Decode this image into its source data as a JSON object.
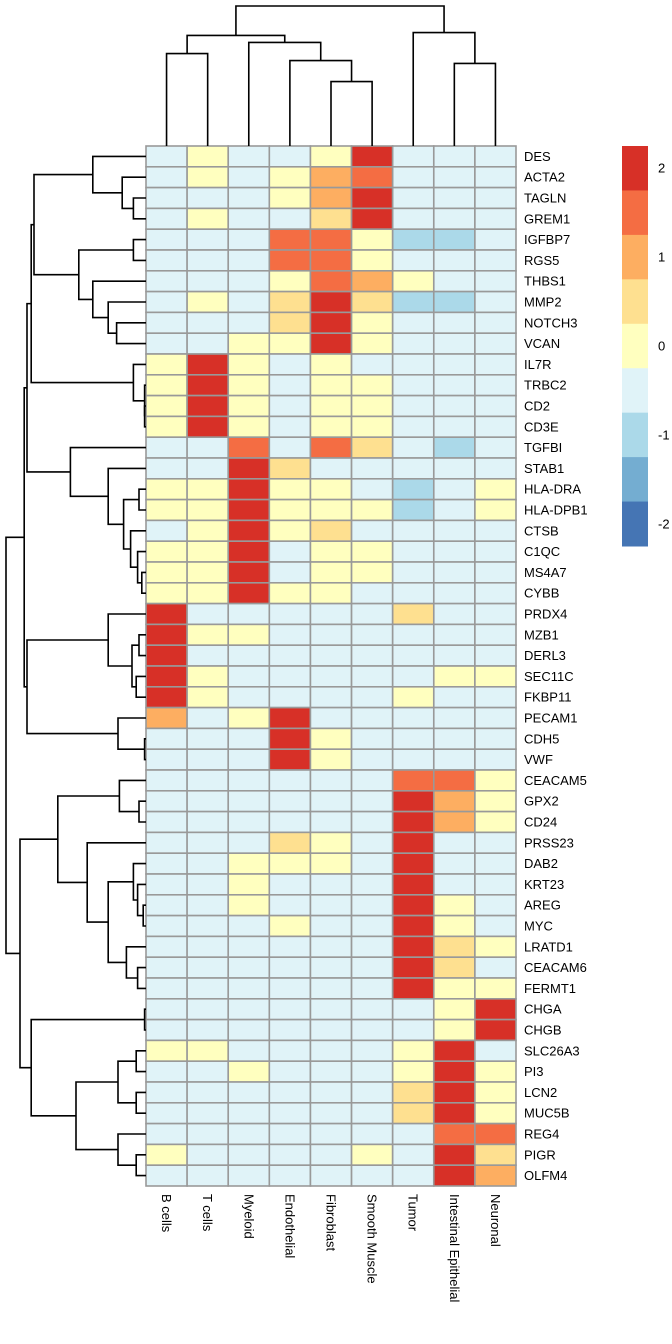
{
  "chart_data": {
    "type": "heatmap",
    "title": "",
    "xlabel": "",
    "ylabel": "",
    "columns": [
      "B cells",
      "T cells",
      "Myeloid",
      "Endothelial",
      "Fibroblast",
      "Smooth Muscle",
      "Tumor",
      "Intestinal Epithelial",
      "Neuronal"
    ],
    "rows": [
      "DES",
      "ACTA2",
      "TAGLN",
      "GREM1",
      "IGFBP7",
      "RGS5",
      "THBS1",
      "MMP2",
      "NOTCH3",
      "VCAN",
      "IL7R",
      "TRBC2",
      "CD2",
      "CD3E",
      "TGFBI",
      "STAB1",
      "HLA-DRA",
      "HLA-DPB1",
      "CTSB",
      "C1QC",
      "MS4A7",
      "CYBB",
      "PRDX4",
      "MZB1",
      "DERL3",
      "SEC11C",
      "FKBP11",
      "PECAM1",
      "CDH5",
      "VWF",
      "CEACAM5",
      "GPX2",
      "CD24",
      "PRSS23",
      "DAB2",
      "KRT23",
      "AREG",
      "MYC",
      "LRATD1",
      "CEACAM6",
      "FERMT1",
      "CHGA",
      "CHGB",
      "SLC26A3",
      "PI3",
      "LCN2",
      "MUC5B",
      "REG4",
      "PIGR",
      "OLFM4"
    ],
    "values": [
      [
        -0.25,
        0.25,
        -0.25,
        -0.25,
        0.25,
        2.5,
        -0.25,
        -0.25,
        -0.25
      ],
      [
        -0.25,
        0.25,
        -0.25,
        0.25,
        1.25,
        1.75,
        -0.25,
        -0.25,
        -0.25
      ],
      [
        -0.25,
        -0.25,
        -0.25,
        0.25,
        1.25,
        2.5,
        -0.25,
        -0.25,
        -0.25
      ],
      [
        -0.25,
        0.25,
        -0.25,
        -0.25,
        0.75,
        2.5,
        -0.25,
        -0.25,
        -0.25
      ],
      [
        -0.25,
        -0.25,
        -0.25,
        1.75,
        1.75,
        0.25,
        -0.75,
        -0.75,
        -0.25
      ],
      [
        -0.25,
        -0.25,
        -0.25,
        1.75,
        1.75,
        0.25,
        -0.25,
        -0.25,
        -0.25
      ],
      [
        -0.25,
        -0.25,
        -0.25,
        0.25,
        1.75,
        1.25,
        0.25,
        -0.25,
        -0.25
      ],
      [
        -0.25,
        0.25,
        -0.25,
        0.75,
        2.5,
        0.75,
        -0.75,
        -0.75,
        -0.25
      ],
      [
        -0.25,
        -0.25,
        -0.25,
        0.75,
        2.5,
        0.25,
        -0.25,
        -0.25,
        -0.25
      ],
      [
        -0.25,
        -0.25,
        0.25,
        0.25,
        2.5,
        0.25,
        -0.25,
        -0.25,
        -0.25
      ],
      [
        0.25,
        2.5,
        0.25,
        -0.25,
        0.25,
        -0.25,
        -0.25,
        -0.25,
        -0.25
      ],
      [
        0.25,
        2.5,
        0.25,
        -0.25,
        0.25,
        0.25,
        -0.25,
        -0.25,
        -0.25
      ],
      [
        0.25,
        2.5,
        0.25,
        -0.25,
        0.25,
        0.25,
        -0.25,
        -0.25,
        -0.25
      ],
      [
        0.25,
        2.5,
        0.25,
        -0.25,
        0.25,
        0.25,
        -0.25,
        -0.25,
        -0.25
      ],
      [
        -0.25,
        -0.25,
        1.75,
        -0.25,
        1.75,
        0.75,
        -0.25,
        -0.75,
        -0.25
      ],
      [
        -0.25,
        -0.25,
        2.5,
        0.75,
        -0.25,
        -0.25,
        -0.25,
        -0.25,
        -0.25
      ],
      [
        0.25,
        0.25,
        2.5,
        0.25,
        0.25,
        -0.25,
        -0.75,
        -0.25,
        0.25
      ],
      [
        0.25,
        0.25,
        2.5,
        0.25,
        0.25,
        0.25,
        -0.75,
        -0.25,
        0.25
      ],
      [
        -0.25,
        0.25,
        2.5,
        0.25,
        0.75,
        -0.25,
        -0.25,
        -0.25,
        -0.25
      ],
      [
        0.25,
        0.25,
        2.5,
        -0.25,
        0.25,
        0.25,
        -0.25,
        -0.25,
        -0.25
      ],
      [
        0.25,
        0.25,
        2.5,
        -0.25,
        0.25,
        0.25,
        -0.25,
        -0.25,
        -0.25
      ],
      [
        0.25,
        0.25,
        2.5,
        0.25,
        0.25,
        -0.25,
        -0.25,
        -0.25,
        -0.25
      ],
      [
        2.5,
        -0.25,
        -0.25,
        -0.25,
        -0.25,
        -0.25,
        0.75,
        -0.25,
        -0.25
      ],
      [
        2.5,
        0.25,
        0.25,
        -0.25,
        -0.25,
        -0.25,
        -0.25,
        -0.25,
        -0.25
      ],
      [
        2.5,
        -0.25,
        -0.25,
        -0.25,
        -0.25,
        -0.25,
        -0.25,
        -0.25,
        -0.25
      ],
      [
        2.5,
        0.25,
        -0.25,
        -0.25,
        -0.25,
        -0.25,
        -0.25,
        0.25,
        0.25
      ],
      [
        2.5,
        0.25,
        -0.25,
        -0.25,
        -0.25,
        -0.25,
        0.25,
        -0.25,
        -0.25
      ],
      [
        1.25,
        -0.25,
        0.25,
        2.5,
        -0.25,
        -0.25,
        -0.25,
        -0.25,
        -0.25
      ],
      [
        -0.25,
        -0.25,
        -0.25,
        2.5,
        0.25,
        -0.25,
        -0.25,
        -0.25,
        -0.25
      ],
      [
        -0.25,
        -0.25,
        -0.25,
        2.5,
        0.25,
        -0.25,
        -0.25,
        -0.25,
        -0.25
      ],
      [
        -0.25,
        -0.25,
        -0.25,
        -0.25,
        -0.25,
        -0.25,
        1.75,
        1.75,
        0.25
      ],
      [
        -0.25,
        -0.25,
        -0.25,
        -0.25,
        -0.25,
        -0.25,
        2.5,
        1.25,
        0.25
      ],
      [
        -0.25,
        -0.25,
        -0.25,
        -0.25,
        -0.25,
        -0.25,
        2.5,
        1.25,
        0.25
      ],
      [
        -0.25,
        -0.25,
        -0.25,
        0.75,
        0.25,
        -0.25,
        2.5,
        -0.25,
        -0.25
      ],
      [
        -0.25,
        -0.25,
        0.25,
        0.25,
        0.25,
        -0.25,
        2.5,
        -0.25,
        -0.25
      ],
      [
        -0.25,
        -0.25,
        0.25,
        -0.25,
        -0.25,
        -0.25,
        2.5,
        -0.25,
        -0.25
      ],
      [
        -0.25,
        -0.25,
        0.25,
        -0.25,
        -0.25,
        -0.25,
        2.5,
        0.25,
        -0.25
      ],
      [
        -0.25,
        -0.25,
        -0.25,
        0.25,
        -0.25,
        -0.25,
        2.5,
        0.25,
        -0.25
      ],
      [
        -0.25,
        -0.25,
        -0.25,
        -0.25,
        -0.25,
        -0.25,
        2.5,
        0.75,
        0.25
      ],
      [
        -0.25,
        -0.25,
        -0.25,
        -0.25,
        -0.25,
        -0.25,
        2.5,
        0.75,
        -0.25
      ],
      [
        -0.25,
        -0.25,
        -0.25,
        -0.25,
        -0.25,
        -0.25,
        2.5,
        0.25,
        0.25
      ],
      [
        -0.25,
        -0.25,
        -0.25,
        -0.25,
        -0.25,
        -0.25,
        -0.25,
        0.25,
        2.5
      ],
      [
        -0.25,
        -0.25,
        -0.25,
        -0.25,
        -0.25,
        -0.25,
        -0.25,
        0.25,
        2.5
      ],
      [
        0.25,
        0.25,
        -0.25,
        -0.25,
        -0.25,
        -0.25,
        0.25,
        2.5,
        -0.25
      ],
      [
        -0.25,
        -0.25,
        0.25,
        -0.25,
        -0.25,
        -0.25,
        0.25,
        2.5,
        0.25
      ],
      [
        -0.25,
        -0.25,
        -0.25,
        -0.25,
        -0.25,
        -0.25,
        0.75,
        2.5,
        0.25
      ],
      [
        -0.25,
        -0.25,
        -0.25,
        -0.25,
        -0.25,
        -0.25,
        0.75,
        2.5,
        0.25
      ],
      [
        -0.25,
        -0.25,
        -0.25,
        -0.25,
        -0.25,
        -0.25,
        -0.25,
        1.75,
        1.75
      ],
      [
        0.25,
        -0.25,
        -0.25,
        -0.25,
        -0.25,
        0.25,
        -0.25,
        2.5,
        0.75
      ],
      [
        -0.25,
        -0.25,
        -0.25,
        -0.25,
        -0.25,
        -0.25,
        -0.25,
        2.5,
        1.25
      ]
    ],
    "color_bins": [
      {
        "min": 2.0,
        "max": 2.5,
        "color": "#D73027"
      },
      {
        "min": 1.5,
        "max": 2.0,
        "color": "#F46D43"
      },
      {
        "min": 1.0,
        "max": 1.5,
        "color": "#FDAE61"
      },
      {
        "min": 0.5,
        "max": 1.0,
        "color": "#FEE090"
      },
      {
        "min": 0.0,
        "max": 0.5,
        "color": "#FFFFBF"
      },
      {
        "min": -0.5,
        "max": 0.0,
        "color": "#E0F3F8"
      },
      {
        "min": -1.0,
        "max": -0.5,
        "color": "#ABD9E9"
      },
      {
        "min": -1.5,
        "max": -1.0,
        "color": "#74ADD1"
      },
      {
        "min": -2.0,
        "max": -1.5,
        "color": "#4575B4"
      }
    ],
    "legend": {
      "position": "right",
      "ticks": [
        2,
        1,
        0,
        -1,
        -2
      ],
      "range": [
        -2.25,
        2.25
      ]
    },
    "grid_border_color": "#999999",
    "row_dendrogram": [
      [
        [
          [
            [
              1,
              [
                2,
                3,
                0.09
              ],
              0.17
            ],
            0,
            0.38
          ],
          [
            [
              4,
              5,
              0.09
            ],
            [
              6,
              [
                7,
                [
                  8,
                  9,
                  0.21
                ],
                0.27
              ],
              0.38
            ],
            0.48
          ],
          0.8
        ],
        [
          10,
          [
            11,
            [
              12,
              13,
              0.01
            ],
            0.01
          ],
          0.09
        ],
        0.82
      ],
      [
        14,
        [
          15,
          [
            [
              16,
              17,
              0.05
            ],
            [
              18,
              [
                19,
                [
                  20,
                  21,
                  0.03
                ],
                0.06
              ],
              0.11
            ],
            0.16
          ],
          0.27
        ],
        0.54
      ],
      0.85
    ],
    "row_dendrogram_lower_upper": [
      [
        22,
        [
          [
            23,
            24,
            0.05
          ],
          [
            25,
            26,
            0.07
          ],
          0.1
        ],
        0.27
      ],
      [
        27,
        [
          28,
          29,
          0.01
        ],
        0.2
      ],
      0.85
    ],
    "row_dendrogram_lower": [
      [
        [
          30,
          [
            31,
            32,
            0.05
          ],
          0.19
        ],
        [
          33,
          [
            [
              34,
              [
                35,
                [
                  36,
                  37,
                  0.02
                ],
                0.06
              ],
              0.09
            ],
            [
              38,
              [
                39,
                40,
                0.06
              ],
              0.14
            ],
            0.27
          ],
          0.42
        ],
        0.63
      ],
      [
        [
          41,
          42,
          0.01
        ],
        [
          [
            [
              43,
              44,
              0.07
            ],
            [
              45,
              46,
              0.07
            ],
            0.2
          ],
          [
            47,
            [
              48,
              49,
              0.07
            ],
            0.2
          ],
          0.5
        ],
        0.82
      ],
      0.9
    ],
    "row_dendrogram_heights": {
      "upper_join": 0.87,
      "root": 1.0
    },
    "col_dendrogram": [
      [
        [
          0,
          1,
          0.66
        ],
        [
          2,
          [
            3,
            [
              4,
              5,
              0.46
            ],
            0.61
          ],
          0.74
        ],
        0.79
      ],
      [
        6,
        [
          7,
          8,
          0.59
        ],
        0.81
      ],
      1.0
    ]
  }
}
